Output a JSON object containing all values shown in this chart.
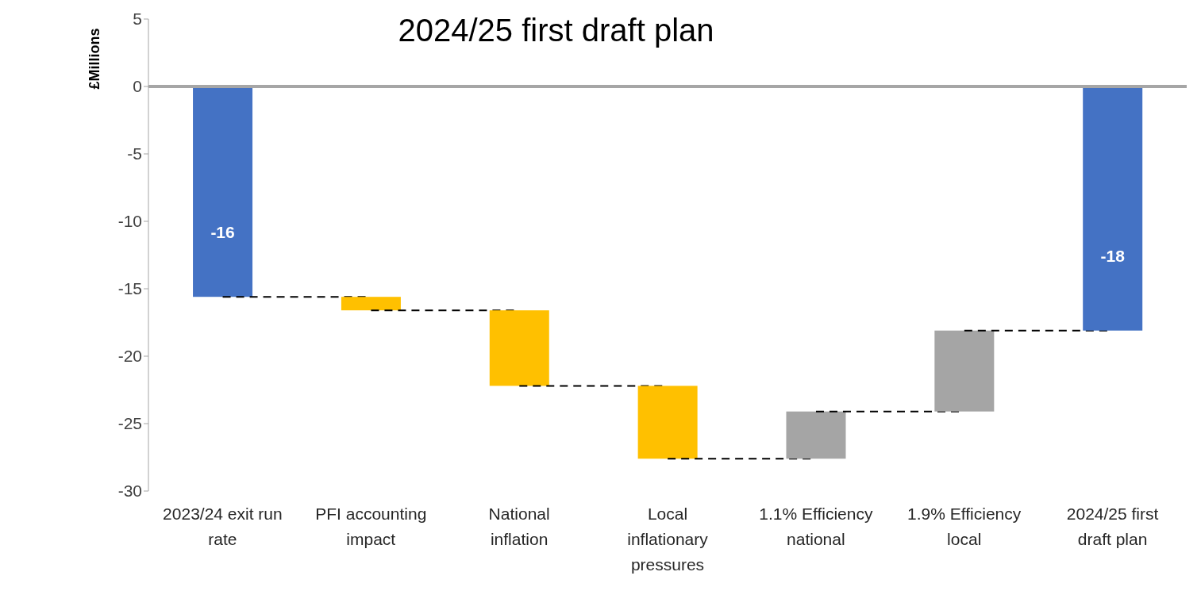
{
  "chart_data": {
    "type": "bar",
    "title": "2024/25 first draft plan",
    "ylabel": "£Millions",
    "categories": [
      "2023/24 exit run rate",
      "PFI accounting impact",
      "National inflation",
      "Local inflationary pressures",
      "1.1% Efficiency national",
      "1.9% Efficiency local",
      "2024/25 first draft plan"
    ],
    "values": [
      -15.6,
      -1.0,
      -5.6,
      -5.4,
      3.5,
      6.0,
      -18.1
    ],
    "base": [
      0,
      -15.6,
      -16.6,
      -22.2,
      -27.6,
      -24.1,
      0
    ],
    "colors": [
      "#4472c4",
      "#ffc000",
      "#ffc000",
      "#ffc000",
      "#a5a5a5",
      "#a5a5a5",
      "#4472c4"
    ],
    "value_labels": [
      "-16",
      null,
      null,
      null,
      null,
      null,
      "-18"
    ],
    "ylim": [
      -30,
      5
    ],
    "yticks": [
      -30,
      -25,
      -20,
      -15,
      -10,
      -5,
      0,
      5
    ],
    "ref_lines": [
      {
        "axis": "y",
        "value": 0,
        "color": "#a6a6a6"
      }
    ],
    "grid": false,
    "legend": false
  }
}
